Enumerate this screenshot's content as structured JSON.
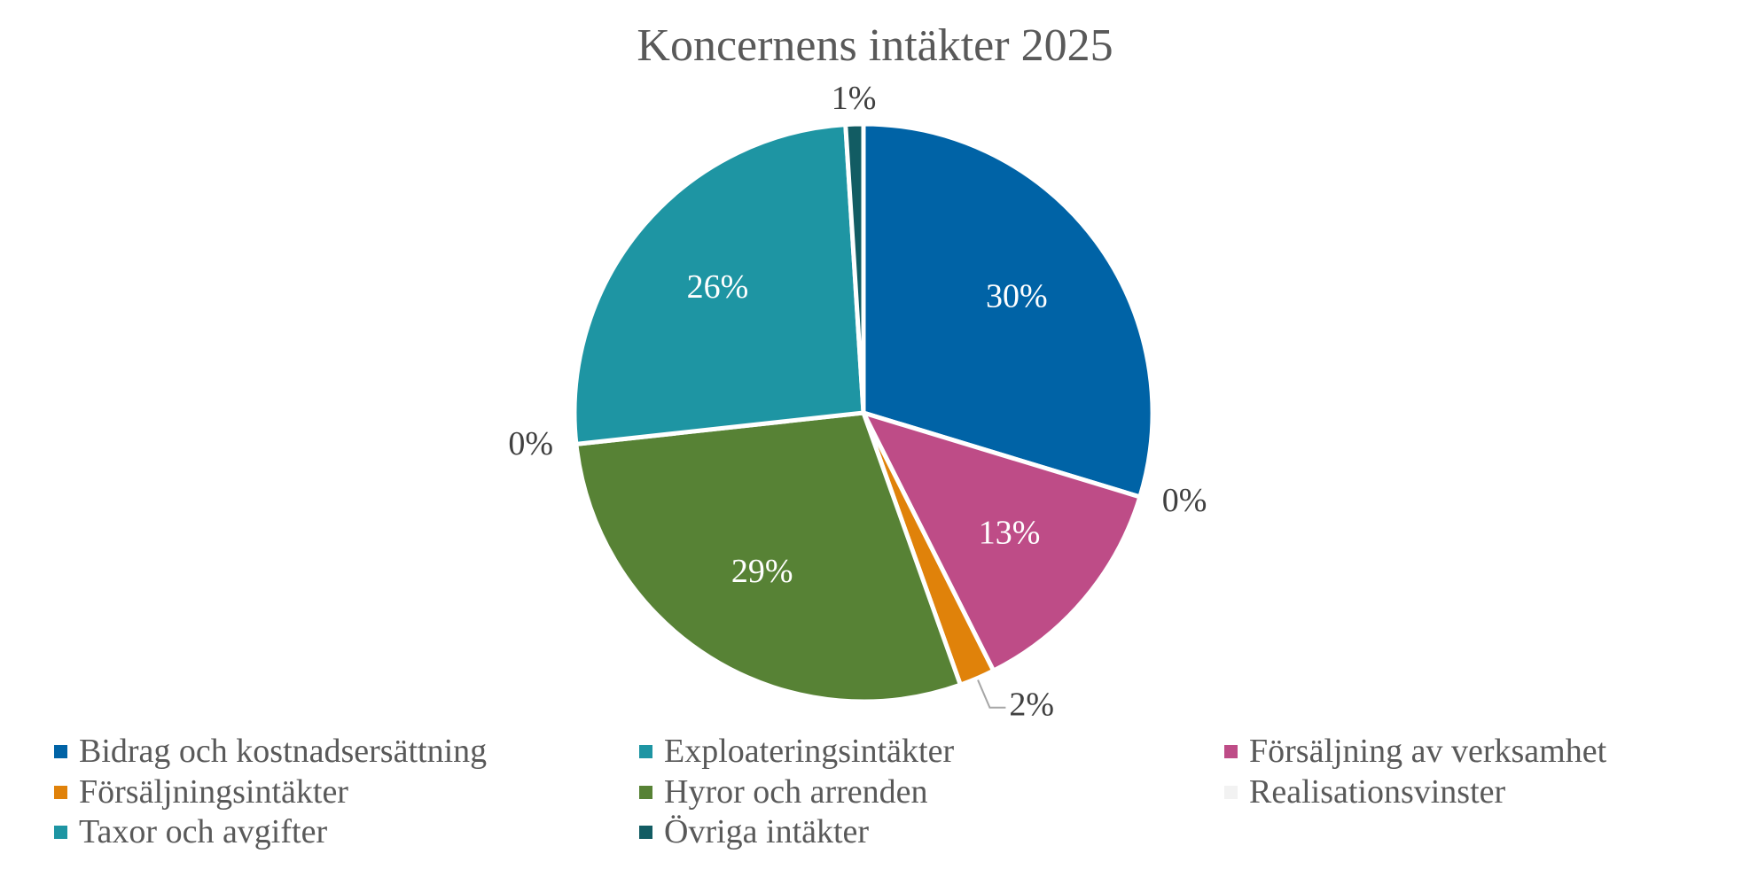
{
  "chart_data": {
    "type": "pie",
    "title": "Koncernens intäkter 2025",
    "legend_position": "bottom",
    "start_angle_deg": 0,
    "direction": "clockwise",
    "slices": [
      {
        "name": "Bidrag och kostnadsersättning",
        "value": 30,
        "label": "30%",
        "color": "#0063A6"
      },
      {
        "name": "Exploateringsintäkter",
        "value": 0,
        "label": "0%",
        "color": "#1E95A3"
      },
      {
        "name": "Försäljning av verksamhet",
        "value": 13,
        "label": "13%",
        "color": "#BE4C87"
      },
      {
        "name": "Försäljningsintäkter",
        "value": 2,
        "label": "2%",
        "color": "#E0820A"
      },
      {
        "name": "Hyror och arrenden",
        "value": 29,
        "label": "29%",
        "color": "#578235"
      },
      {
        "name": "Realisationsvinster",
        "value": 0,
        "label": "0%",
        "color": "#F2F2F2"
      },
      {
        "name": "Taxor och avgifter",
        "value": 26,
        "label": "26%",
        "color": "#1E95A3"
      },
      {
        "name": "Övriga intäkter",
        "value": 1,
        "label": "1%",
        "color": "#125C63"
      }
    ]
  }
}
